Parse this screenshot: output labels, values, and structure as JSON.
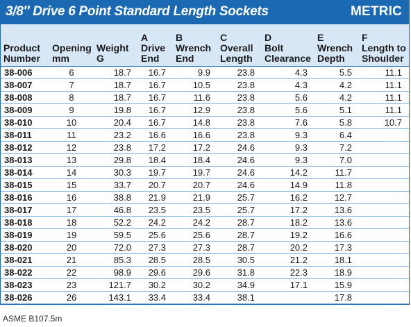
{
  "title": "3/8″ Drive 6 Point Standard Length Sockets",
  "badge": "METRIC",
  "columns": [
    {
      "line1": "",
      "line2": "Product",
      "line3": "Number"
    },
    {
      "line1": "",
      "line2": "Opening",
      "line3": "mm"
    },
    {
      "line1": "",
      "line2": "Weight",
      "line3": "G"
    },
    {
      "line1": "A",
      "line2": "Drive",
      "line3": "End"
    },
    {
      "line1": "B",
      "line2": "Wrench",
      "line3": "End"
    },
    {
      "line1": "C",
      "line2": "Overall",
      "line3": "Length"
    },
    {
      "line1": "D",
      "line2": "Bolt",
      "line3": "Clearance"
    },
    {
      "line1": "E",
      "line2": "Wrench",
      "line3": "Depth"
    },
    {
      "line1": "F",
      "line2": "Length to",
      "line3": "Shoulder"
    }
  ],
  "rows": [
    [
      "38-006",
      "6",
      "18.7",
      "16.7",
      "9.9",
      "23.8",
      "4.3",
      "5.5",
      "11.1"
    ],
    [
      "38-007",
      "7",
      "18.7",
      "16.7",
      "10.5",
      "23.8",
      "4.3",
      "4.2",
      "11.1"
    ],
    [
      "38-008",
      "8",
      "18.7",
      "16.7",
      "11.6",
      "23.8",
      "5.6",
      "4.2",
      "11.1"
    ],
    [
      "38-009",
      "9",
      "19.8",
      "16.7",
      "12.9",
      "23.8",
      "5.6",
      "5.1",
      "11.1"
    ],
    [
      "38-010",
      "10",
      "20.4",
      "16.7",
      "14.8",
      "23.8",
      "7.6",
      "5.8",
      "10.7"
    ],
    [
      "38-011",
      "11",
      "23.2",
      "16.6",
      "16.6",
      "23.8",
      "9.3",
      "6.4",
      ""
    ],
    [
      "38-012",
      "12",
      "23.8",
      "17.2",
      "17.2",
      "24.6",
      "9.3",
      "7.2",
      ""
    ],
    [
      "38-013",
      "13",
      "29.8",
      "18.4",
      "18.4",
      "24.6",
      "9.3",
      "7.0",
      ""
    ],
    [
      "38-014",
      "14",
      "30.3",
      "19.7",
      "19.7",
      "24.6",
      "14.2",
      "11.7",
      ""
    ],
    [
      "38-015",
      "15",
      "33.7",
      "20.7",
      "20.7",
      "24.6",
      "14.9",
      "11.8",
      ""
    ],
    [
      "38-016",
      "16",
      "38.8",
      "21.9",
      "21.9",
      "25.7",
      "16.2",
      "12.7",
      ""
    ],
    [
      "38-017",
      "17",
      "46.8",
      "23.5",
      "23.5",
      "25.7",
      "17.2",
      "13.6",
      ""
    ],
    [
      "38-018",
      "18",
      "52.2",
      "24.2",
      "24.2",
      "28.7",
      "18.2",
      "13.6",
      ""
    ],
    [
      "38-019",
      "19",
      "59.5",
      "25.6",
      "25.6",
      "28.7",
      "19.2",
      "16.6",
      ""
    ],
    [
      "38-020",
      "20",
      "72.0",
      "27.3",
      "27.3",
      "28.7",
      "20.2",
      "17.3",
      ""
    ],
    [
      "38-021",
      "21",
      "85.3",
      "28.5",
      "28.5",
      "30.5",
      "21.2",
      "18.1",
      ""
    ],
    [
      "38-022",
      "22",
      "98.9",
      "29.6",
      "29.6",
      "31.8",
      "22.3",
      "18.9",
      ""
    ],
    [
      "38-023",
      "23",
      "121.7",
      "30.2",
      "30.2",
      "34.9",
      "17.1",
      "15.9",
      ""
    ],
    [
      "38-026",
      "26",
      "143.1",
      "33.4",
      "33.4",
      "38.1",
      "",
      "17.8",
      ""
    ]
  ],
  "footnote": "ASME B107.5m",
  "colors": {
    "header_bar": "#1c69b3",
    "header_row": "#d7e7f6",
    "row_line": "#7fb1df"
  }
}
